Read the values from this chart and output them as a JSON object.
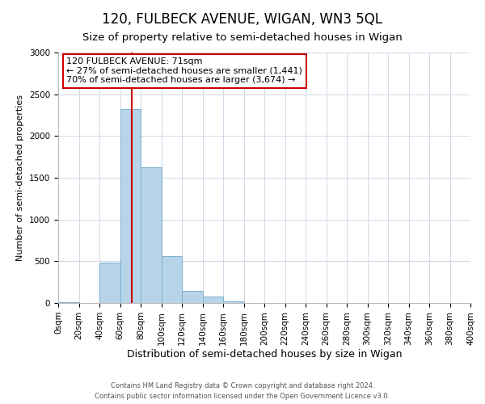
{
  "title": "120, FULBECK AVENUE, WIGAN, WN3 5QL",
  "subtitle": "Size of property relative to semi-detached houses in Wigan",
  "xlabel": "Distribution of semi-detached houses by size in Wigan",
  "ylabel": "Number of semi-detached properties",
  "bin_edges": [
    0,
    20,
    40,
    60,
    80,
    100,
    120,
    140,
    160,
    180,
    200,
    220,
    240,
    260,
    280,
    300,
    320,
    340,
    360,
    380,
    400
  ],
  "bin_counts": [
    5,
    0,
    480,
    2320,
    1630,
    560,
    150,
    75,
    20,
    0,
    0,
    0,
    0,
    0,
    0,
    0,
    0,
    0,
    0,
    0
  ],
  "bar_color": "#b8d4e8",
  "bar_edgecolor": "#7aafd4",
  "vline_x": 71,
  "vline_color": "#cc0000",
  "annotation_line1": "120 FULBECK AVENUE: 71sqm",
  "annotation_line2": "← 27% of semi-detached houses are smaller (1,441)",
  "annotation_line3": "70% of semi-detached houses are larger (3,674) →",
  "annotation_box_facecolor": "#ffffff",
  "annotation_box_edgecolor": "#cc0000",
  "ylim": [
    0,
    3000
  ],
  "xlim": [
    0,
    400
  ],
  "yticks": [
    0,
    500,
    1000,
    1500,
    2000,
    2500,
    3000
  ],
  "xtick_labels": [
    "0sqm",
    "20sqm",
    "40sqm",
    "60sqm",
    "80sqm",
    "100sqm",
    "120sqm",
    "140sqm",
    "160sqm",
    "180sqm",
    "200sqm",
    "220sqm",
    "240sqm",
    "260sqm",
    "280sqm",
    "300sqm",
    "320sqm",
    "340sqm",
    "360sqm",
    "380sqm",
    "400sqm"
  ],
  "footer_line1": "Contains HM Land Registry data © Crown copyright and database right 2024.",
  "footer_line2": "Contains public sector information licensed under the Open Government Licence v3.0.",
  "background_color": "#ffffff",
  "grid_color": "#d0d8e8",
  "title_fontsize": 12,
  "subtitle_fontsize": 9.5,
  "xlabel_fontsize": 9,
  "ylabel_fontsize": 8,
  "tick_fontsize": 7.5,
  "footer_fontsize": 6,
  "annot_fontsize": 8
}
